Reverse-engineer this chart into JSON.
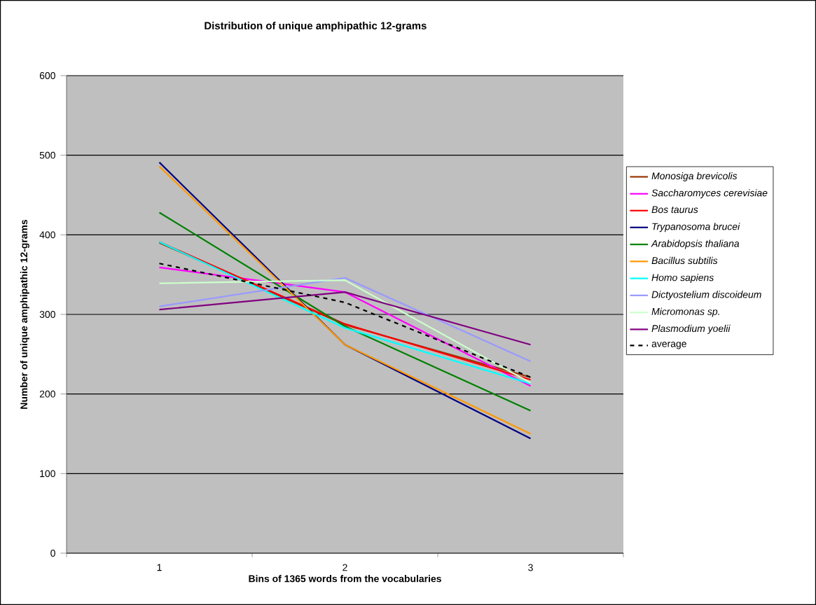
{
  "chart_data": {
    "type": "line",
    "title": "Distribution of unique amphipathic 12-grams",
    "xlabel": "Bins of 1365 words from the vocabularies",
    "ylabel": "Number of unique amphipathic 12-grams",
    "categories": [
      "1",
      "2",
      "3"
    ],
    "series": [
      {
        "name": "Monosiga brevicolis",
        "color": "#993300",
        "values": [
          390,
          287,
          221
        ]
      },
      {
        "name": "Saccharomyces cerevisiae",
        "color": "#ff00ff",
        "values": [
          359,
          328,
          210
        ]
      },
      {
        "name": "Bos taurus",
        "color": "#ff0000",
        "values": [
          391,
          288,
          218
        ]
      },
      {
        "name": "Trypanosoma brucei",
        "color": "#000080",
        "values": [
          491,
          262,
          144
        ]
      },
      {
        "name": "Arabidopsis thaliana",
        "color": "#008000",
        "values": [
          428,
          285,
          179
        ]
      },
      {
        "name": "Bacillus subtilis",
        "color": "#ff9900",
        "values": [
          486,
          262,
          150
        ]
      },
      {
        "name": "Homo sapiens",
        "color": "#00ffff",
        "values": [
          391,
          283,
          213
        ]
      },
      {
        "name": "Dictyostelium discoideum",
        "color": "#9999ff",
        "values": [
          310,
          346,
          241
        ]
      },
      {
        "name": "Micromonas sp.",
        "color": "#ccffcc",
        "values": [
          339,
          343,
          214
        ]
      },
      {
        "name": "Plasmodium yoelii",
        "color": "#800080",
        "values": [
          306,
          328,
          262
        ]
      },
      {
        "name": "average",
        "color": "#000000",
        "line_style": "dashed",
        "values": [
          364,
          315,
          221
        ]
      }
    ],
    "ylim": [
      0,
      600
    ],
    "yticks": [
      0,
      100,
      200,
      300,
      400,
      500,
      600
    ],
    "grid": "y",
    "legend": "right"
  }
}
